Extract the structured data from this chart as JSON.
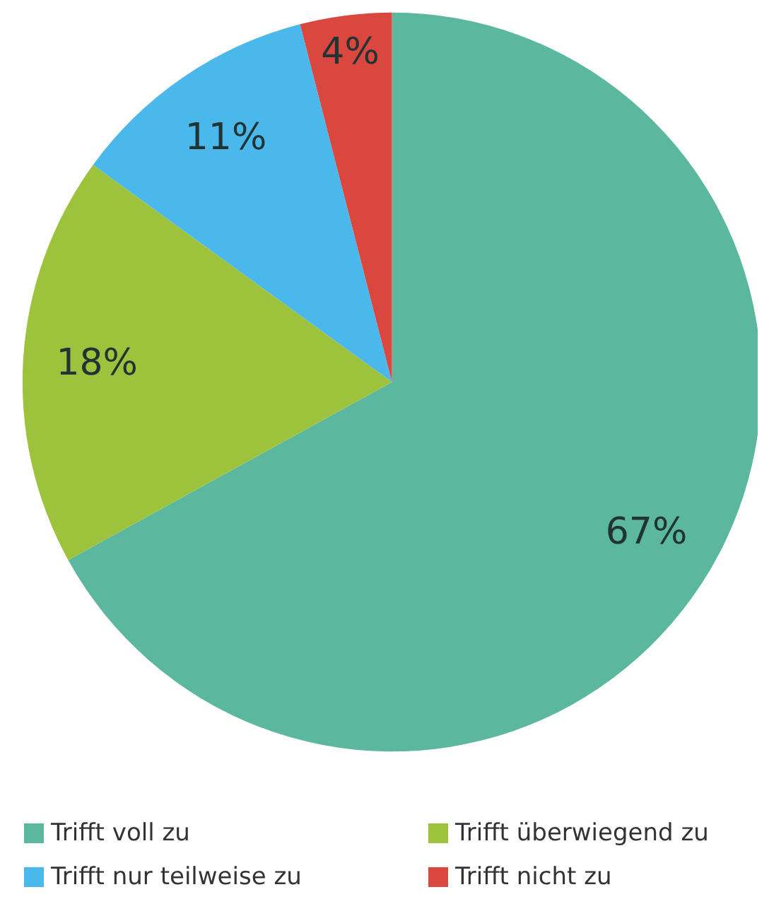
{
  "chart_data": {
    "type": "pie",
    "categories": [
      "Trifft voll zu",
      "Trifft überwiegend zu",
      "Trifft nur teilweise zu",
      "Trifft nicht zu"
    ],
    "values": [
      67,
      18,
      11,
      4
    ],
    "colors": [
      "#5bb89f",
      "#9dc23b",
      "#4ab8ea",
      "#d9473f"
    ],
    "value_labels": [
      "67%",
      "18%",
      "11%",
      "4%"
    ],
    "legend": "bottom"
  }
}
